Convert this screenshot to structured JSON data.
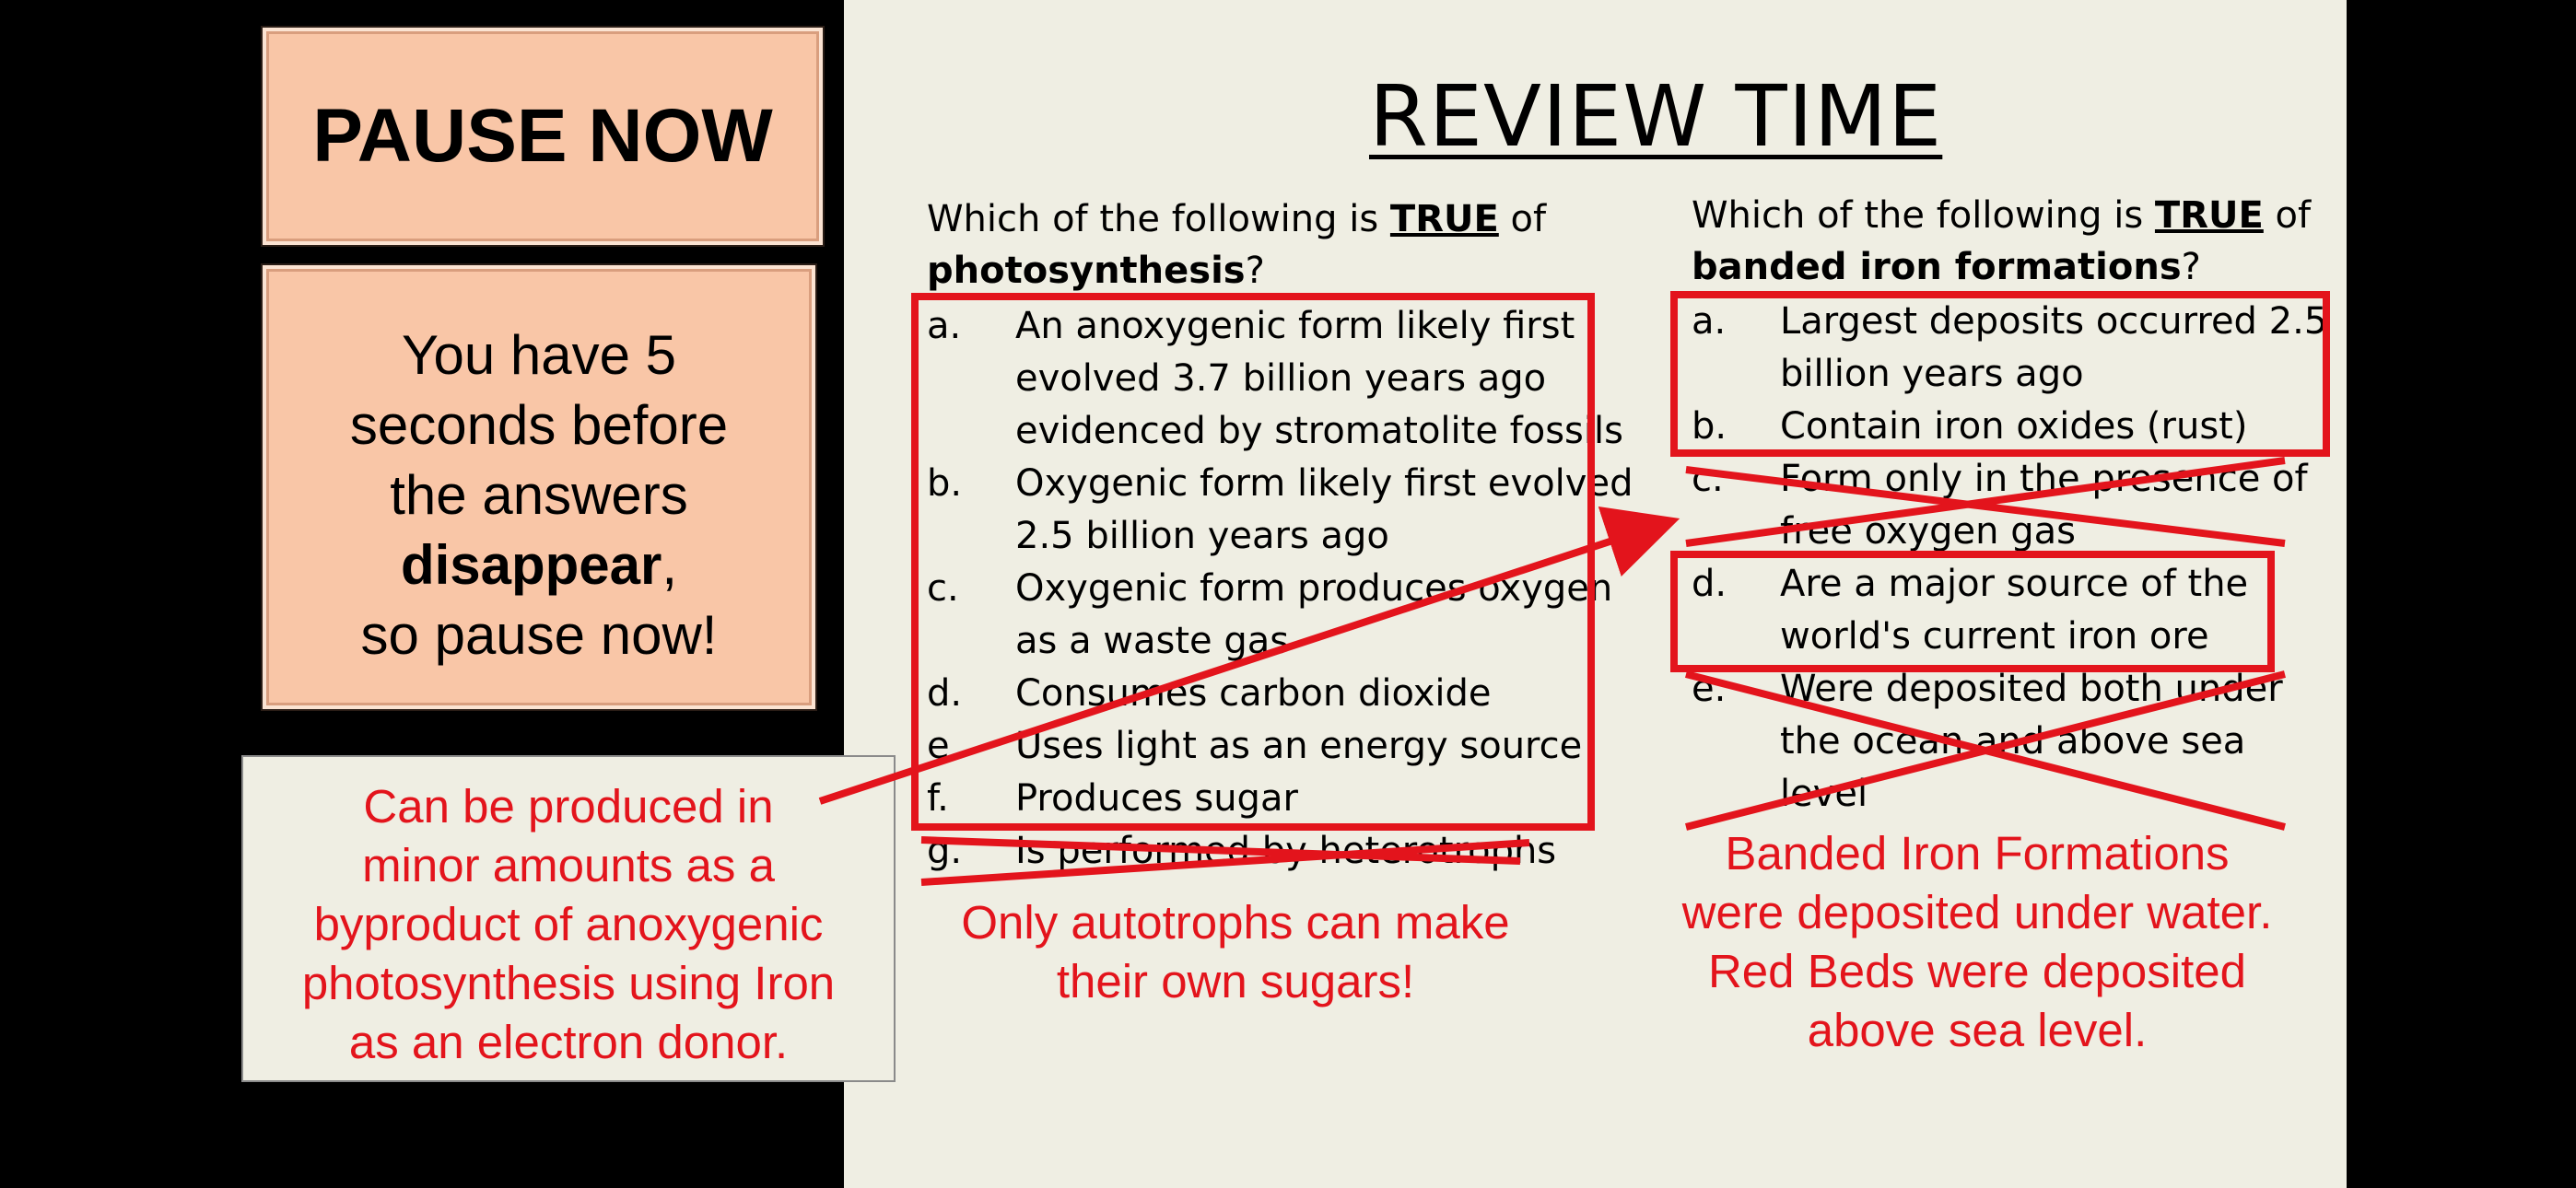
{
  "pause_box": {
    "label": "PAUSE NOW"
  },
  "info_box": {
    "line1": "You have 5",
    "line2": "seconds before",
    "line3": "the answers",
    "line4_bold": "disappear",
    "line4_rest": ",",
    "line5": "so pause now!"
  },
  "side_note": {
    "lines": [
      "Can be produced in",
      "minor amounts as a",
      "byproduct of anoxygenic",
      "photosynthesis using Iron",
      "as an electron donor."
    ]
  },
  "slide": {
    "title": "REVIEW TIME",
    "left_question": {
      "prefix": "Which of the following is ",
      "emphasis": "TRUE",
      "suffix": " of",
      "topic": "photosynthesis",
      "end": "?",
      "options": [
        {
          "letter": "a.",
          "lines": [
            "An anoxygenic form likely first",
            "evolved 3.7 billion years ago",
            "evidenced by stromatolite fossils"
          ]
        },
        {
          "letter": "b.",
          "lines": [
            "Oxygenic form likely first evolved",
            "2.5 billion years ago"
          ]
        },
        {
          "letter": "c.",
          "lines": [
            "Oxygenic form produces oxygen",
            "as a waste gas"
          ]
        },
        {
          "letter": "d.",
          "lines": [
            "Consumes carbon dioxide"
          ]
        },
        {
          "letter": "e.",
          "lines": [
            "Uses light as an energy source"
          ]
        },
        {
          "letter": "f.",
          "lines": [
            "Produces sugar"
          ]
        },
        {
          "letter": "g.",
          "lines": [
            "Is performed by heterotrophs"
          ]
        }
      ],
      "note_lines": [
        "Only autotrophs can make",
        "their own sugars!"
      ]
    },
    "right_question": {
      "prefix": "Which of the following is ",
      "emphasis": "TRUE",
      "suffix": " of",
      "topic": "banded iron formations",
      "end": "?",
      "options": [
        {
          "letter": "a.",
          "lines": [
            "Largest deposits occurred 2.5",
            "billion years ago"
          ]
        },
        {
          "letter": "b.",
          "lines": [
            "Contain iron oxides (rust)"
          ]
        },
        {
          "letter": "c.",
          "lines": [
            "Form only in the presence of",
            "free oxygen gas"
          ]
        },
        {
          "letter": "d.",
          "lines": [
            "Are a major source of the",
            "world's current iron ore"
          ]
        },
        {
          "letter": "e.",
          "lines": [
            "Were deposited both under",
            "the ocean and above sea",
            "level"
          ]
        }
      ],
      "note_lines": [
        "Banded Iron Formations",
        "were deposited under water.",
        "Red Beds were deposited",
        "above sea level."
      ]
    }
  },
  "colors": {
    "annotation_red": "#e3141c",
    "peach": "#f9c6a7",
    "slide_bg": "#efeee3"
  }
}
